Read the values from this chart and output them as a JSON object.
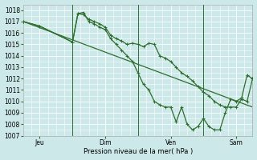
{
  "background_color": "#cce8e8",
  "grid_color": "#ffffff",
  "line_color": "#2d6e2d",
  "xlabel_text": "Pression niveau de la mer( hPa )",
  "ylim": [
    1007,
    1018.5
  ],
  "yticks": [
    1007,
    1008,
    1009,
    1010,
    1011,
    1012,
    1013,
    1014,
    1015,
    1016,
    1017,
    1018
  ],
  "xlim": [
    0,
    168
  ],
  "xtick_positions": [
    12,
    60,
    108,
    156
  ],
  "xtick_labels": [
    "Jeu",
    "Dim",
    "Ven",
    "Sam"
  ],
  "vlines": [
    36,
    84,
    132
  ],
  "line1_x": [
    0,
    168
  ],
  "line1_y": [
    1017.0,
    1009.5
  ],
  "line2_x": [
    0,
    12,
    36,
    40,
    44,
    48,
    52,
    56,
    60,
    64,
    68,
    72,
    76,
    80,
    84,
    88,
    92,
    96,
    100,
    104,
    108,
    112,
    116,
    120,
    124,
    128,
    132,
    136,
    140,
    144,
    148,
    152,
    156,
    160,
    164,
    168
  ],
  "line2_y": [
    1017.0,
    1016.6,
    1015.2,
    1017.7,
    1017.6,
    1017.2,
    1017.0,
    1016.8,
    1016.5,
    1015.8,
    1015.5,
    1015.3,
    1015.0,
    1015.1,
    1015.0,
    1014.8,
    1015.1,
    1015.0,
    1014.0,
    1013.8,
    1013.5,
    1013.0,
    1012.5,
    1012.2,
    1011.8,
    1011.3,
    1010.8,
    1010.5,
    1010.0,
    1009.7,
    1009.5,
    1009.5,
    1009.5,
    1010.2,
    1010.0,
    1012.0
  ],
  "line3_x": [
    0,
    12,
    36,
    40,
    44,
    48,
    52,
    56,
    60,
    64,
    68,
    72,
    76,
    80,
    84,
    88,
    92,
    96,
    100,
    104,
    108,
    112,
    116,
    120,
    124,
    128,
    132,
    136,
    140,
    144,
    148,
    152,
    156,
    160,
    164,
    168
  ],
  "line3_y": [
    1017.0,
    1016.6,
    1015.2,
    1017.7,
    1017.8,
    1017.0,
    1016.8,
    1016.5,
    1016.3,
    1015.5,
    1015.0,
    1014.5,
    1014.0,
    1013.5,
    1012.5,
    1011.5,
    1011.0,
    1010.0,
    1009.7,
    1009.5,
    1009.5,
    1008.2,
    1009.5,
    1008.0,
    1007.5,
    1007.8,
    1008.5,
    1007.8,
    1007.5,
    1007.5,
    1009.0,
    1010.2,
    1010.0,
    1010.3,
    1012.3,
    1012.0
  ]
}
